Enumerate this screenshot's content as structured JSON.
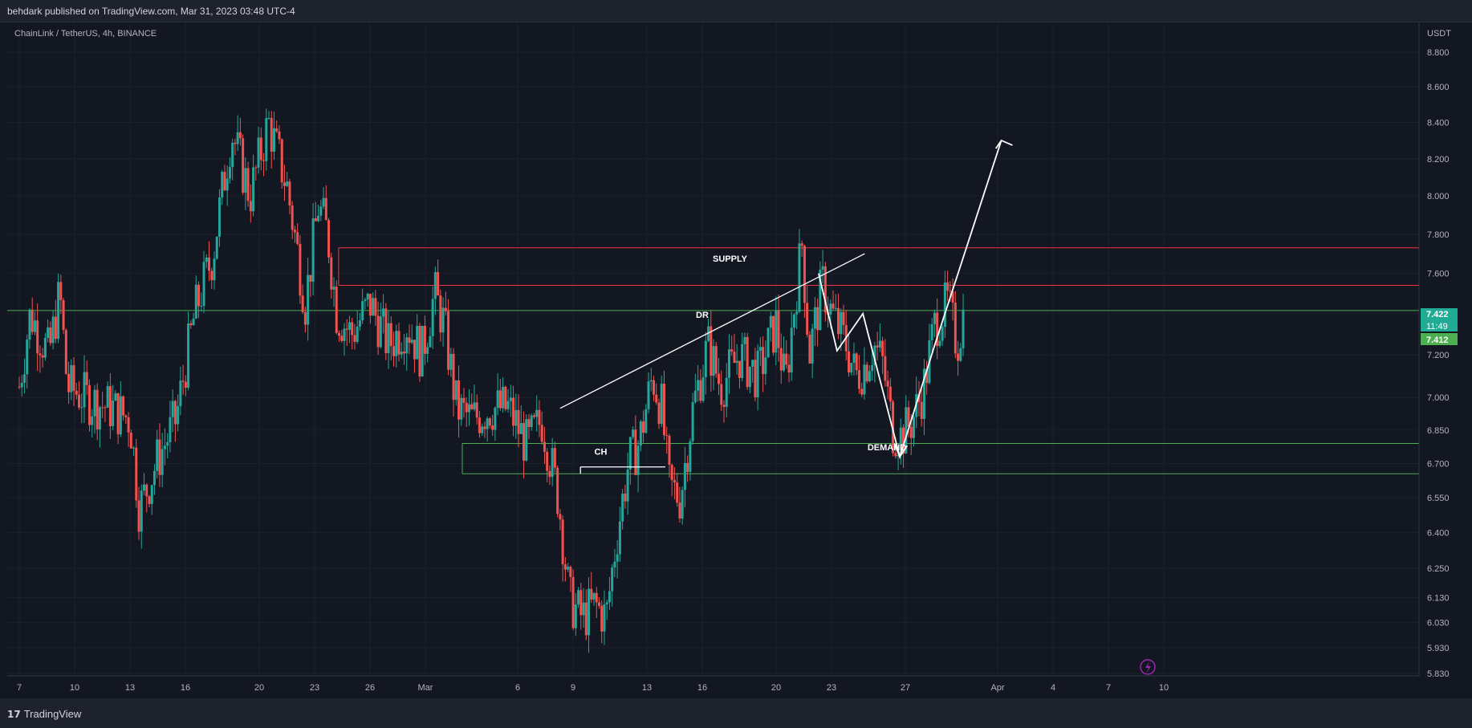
{
  "header": {
    "published": "behdark published on TradingView.com, Mar 31, 2023 03:48 UTC-4"
  },
  "footer": {
    "brand": "TradingView",
    "brand_mark": "17"
  },
  "colors": {
    "background": "#131722",
    "up": "#26a69a",
    "down": "#ef5350",
    "supply": "#f23645",
    "demand": "#4caf50",
    "drawing": "#ffffff",
    "price_tag": "#22ab94"
  },
  "chart_data": {
    "type": "candlestick",
    "symbol_label": "ChainLink / TetherUS, 4h, BINANCE",
    "currency": "USDT",
    "y_scale": "log",
    "ylim": [
      5.83,
      9.0
    ],
    "y_ticks": [
      "8.800",
      "8.600",
      "8.400",
      "8.200",
      "8.000",
      "7.800",
      "7.600",
      "7.400",
      "7.200",
      "7.000",
      "6.850",
      "6.700",
      "6.550",
      "6.400",
      "6.250",
      "6.130",
      "6.030",
      "5.930",
      "5.830"
    ],
    "x_ticks": [
      "7",
      "10",
      "13",
      "16",
      "20",
      "23",
      "26",
      "Mar",
      "6",
      "9",
      "13",
      "16",
      "20",
      "23",
      "27",
      "Apr",
      "4",
      "7",
      "10"
    ],
    "last_price": "7.422",
    "countdown": "11:49",
    "prev_price": "7.412",
    "zones": [
      {
        "name": "SUPPLY",
        "top": 7.73,
        "bottom": 7.54
      },
      {
        "name": "DEMAND",
        "top": 6.79,
        "bottom": 6.655
      }
    ],
    "annotations": [
      "SUPPLY",
      "DR",
      "CH",
      "DEMAND"
    ],
    "waypoints": [
      [
        7.0,
        7.05
      ],
      [
        7.6,
        7.4
      ],
      [
        8.6,
        7.2
      ],
      [
        9.2,
        7.5
      ],
      [
        9.6,
        7.05
      ],
      [
        11.0,
        6.98
      ],
      [
        12.0,
        6.95
      ],
      [
        13.0,
        6.9
      ],
      [
        13.5,
        6.5
      ],
      [
        14.5,
        6.72
      ],
      [
        15.5,
        6.9
      ],
      [
        16.5,
        7.4
      ],
      [
        17.5,
        7.7
      ],
      [
        18.5,
        8.35
      ],
      [
        19.5,
        8.0
      ],
      [
        20.5,
        8.4
      ],
      [
        21.5,
        8.05
      ],
      [
        22.5,
        7.45
      ],
      [
        23.2,
        7.95
      ],
      [
        23.7,
        7.8
      ],
      [
        24.2,
        7.4
      ],
      [
        25.0,
        7.3
      ],
      [
        26.0,
        7.45
      ],
      [
        27.0,
        7.25
      ],
      [
        28.0,
        7.35
      ],
      [
        28.8,
        7.2
      ],
      [
        29.5,
        7.5
      ],
      [
        30.0,
        7.35
      ],
      [
        30.7,
        6.95
      ],
      [
        31.5,
        6.9
      ],
      [
        32.5,
        6.95
      ],
      [
        33.5,
        6.95
      ],
      [
        34.5,
        6.78
      ],
      [
        35.3,
        6.9
      ],
      [
        36.2,
        6.55
      ],
      [
        36.8,
        6.12
      ],
      [
        37.5,
        6.05
      ],
      [
        38.2,
        6.1
      ],
      [
        38.8,
        6.05
      ],
      [
        39.3,
        6.35
      ],
      [
        40.0,
        6.7
      ],
      [
        40.6,
        6.8
      ],
      [
        41.3,
        7.1
      ],
      [
        41.8,
        6.95
      ],
      [
        42.2,
        6.6
      ],
      [
        42.8,
        6.55
      ],
      [
        43.5,
        6.95
      ],
      [
        44.3,
        7.25
      ],
      [
        45.0,
        7.05
      ],
      [
        46.0,
        7.2
      ],
      [
        47.0,
        7.1
      ],
      [
        48.0,
        7.35
      ],
      [
        48.5,
        7.05
      ],
      [
        49.0,
        7.45
      ],
      [
        49.4,
        7.75
      ],
      [
        49.8,
        7.2
      ],
      [
        50.5,
        7.55
      ],
      [
        51.0,
        7.4
      ],
      [
        51.8,
        7.25
      ],
      [
        52.3,
        7.1
      ],
      [
        52.8,
        7.15
      ],
      [
        53.3,
        7.25
      ],
      [
        53.8,
        7.15
      ],
      [
        54.3,
        6.85
      ],
      [
        54.8,
        6.82
      ],
      [
        55.4,
        6.9
      ],
      [
        56.0,
        7.05
      ],
      [
        56.6,
        7.35
      ],
      [
        57.3,
        7.45
      ],
      [
        57.8,
        7.25
      ],
      [
        58.2,
        7.42
      ]
    ]
  }
}
